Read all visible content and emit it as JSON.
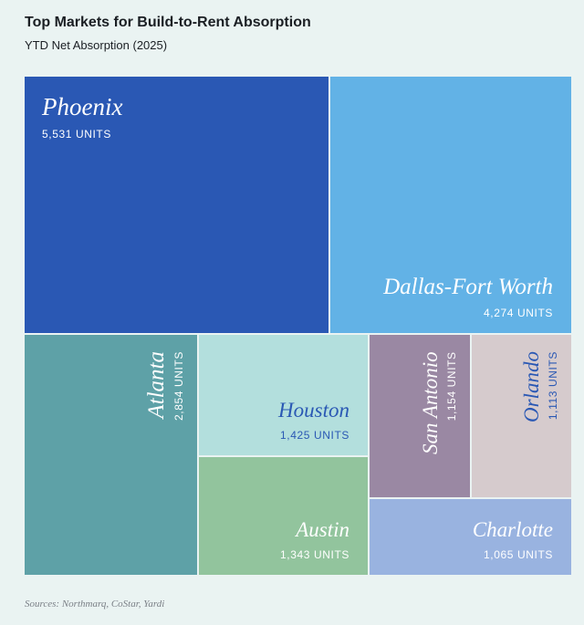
{
  "header": {
    "title": "Top Markets for Build-to-Rent Absorption",
    "subtitle": "YTD Net Absorption (2025)"
  },
  "chart_data": {
    "type": "treemap",
    "title": "Top Markets for Build-to-Rent Absorption",
    "subtitle": "YTD Net Absorption (2025)",
    "unit": "UNITS",
    "items": [
      {
        "name": "Phoenix",
        "value": 5531,
        "value_label": "5,531 UNITS",
        "color": "#2a58b4",
        "text_color": "#ffffff"
      },
      {
        "name": "Dallas-Fort Worth",
        "value": 4274,
        "value_label": "4,274 UNITS",
        "color": "#62b2e6",
        "text_color": "#ffffff"
      },
      {
        "name": "Atlanta",
        "value": 2854,
        "value_label": "2,854 UNITS",
        "color": "#5ea1a7",
        "text_color": "#ffffff"
      },
      {
        "name": "Houston",
        "value": 1425,
        "value_label": "1,425 UNITS",
        "color": "#b3dfdd",
        "text_color": "#2a58b4"
      },
      {
        "name": "Austin",
        "value": 1343,
        "value_label": "1,343 UNITS",
        "color": "#92c49d",
        "text_color": "#ffffff"
      },
      {
        "name": "San Antonio",
        "value": 1154,
        "value_label": "1,154 UNITS",
        "color": "#9a88a3",
        "text_color": "#ffffff"
      },
      {
        "name": "Orlando",
        "value": 1113,
        "value_label": "1,113 UNITS",
        "color": "#d6cbcd",
        "text_color": "#2a58b4"
      },
      {
        "name": "Charlotte",
        "value": 1065,
        "value_label": "1,065 UNITS",
        "color": "#99b3e0",
        "text_color": "#ffffff"
      }
    ]
  },
  "footer": {
    "source": "Sources: Northmarq, CoStar, Yardi"
  }
}
